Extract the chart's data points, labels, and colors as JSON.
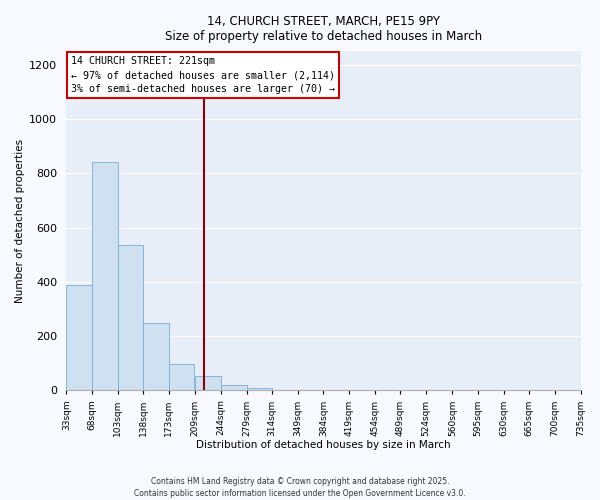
{
  "title_line1": "14, CHURCH STREET, MARCH, PE15 9PY",
  "title_line2": "Size of property relative to detached houses in March",
  "xlabel": "Distribution of detached houses by size in March",
  "ylabel": "Number of detached properties",
  "bar_color": "#cfe0f0",
  "bar_edge_color": "#7aafd4",
  "figure_bg": "#f8f9ff",
  "axes_bg": "#e8eef8",
  "grid_color": "#ffffff",
  "bin_edges": [
    33,
    68,
    103,
    138,
    173,
    209,
    244,
    279,
    314,
    349,
    384,
    419,
    454,
    489,
    524,
    560,
    595,
    630,
    665,
    700,
    735
  ],
  "bin_labels": [
    "33sqm",
    "68sqm",
    "103sqm",
    "138sqm",
    "173sqm",
    "209sqm",
    "244sqm",
    "279sqm",
    "314sqm",
    "349sqm",
    "384sqm",
    "419sqm",
    "454sqm",
    "489sqm",
    "524sqm",
    "560sqm",
    "595sqm",
    "630sqm",
    "665sqm",
    "700sqm",
    "735sqm"
  ],
  "bar_heights": [
    390,
    840,
    535,
    248,
    97,
    52,
    20,
    8,
    3,
    1,
    0,
    0,
    0,
    0,
    0,
    0,
    0,
    0,
    0,
    0
  ],
  "property_line_x": 221,
  "property_line_color": "#8b0000",
  "annotation_line1": "14 CHURCH STREET: 221sqm",
  "annotation_line2": "← 97% of detached houses are smaller (2,114)",
  "annotation_line3": "3% of semi-detached houses are larger (70) →",
  "annotation_box_color": "#ffffff",
  "annotation_box_edge": "#cc0000",
  "ylim": [
    0,
    1250
  ],
  "yticks": [
    0,
    200,
    400,
    600,
    800,
    1000,
    1200
  ],
  "footer_line1": "Contains HM Land Registry data © Crown copyright and database right 2025.",
  "footer_line2": "Contains public sector information licensed under the Open Government Licence v3.0."
}
